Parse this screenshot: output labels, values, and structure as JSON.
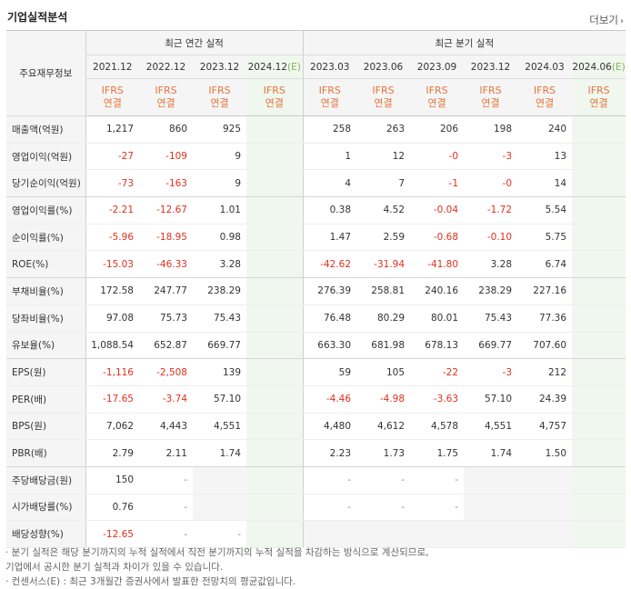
{
  "header": {
    "title": "기업실적분석",
    "more_label": "더보기",
    "more_arrow": "›"
  },
  "table": {
    "row_header": "주요재무정보",
    "group_annual": "최근 연간 실적",
    "group_quarter": "최근 분기 실적",
    "periods": [
      {
        "date": "2021.12",
        "estimate": ""
      },
      {
        "date": "2022.12",
        "estimate": ""
      },
      {
        "date": "2023.12",
        "estimate": ""
      },
      {
        "date": "2024.12",
        "estimate": "(E)"
      },
      {
        "date": "2023.03",
        "estimate": ""
      },
      {
        "date": "2023.06",
        "estimate": ""
      },
      {
        "date": "2023.09",
        "estimate": ""
      },
      {
        "date": "2023.12",
        "estimate": ""
      },
      {
        "date": "2024.03",
        "estimate": ""
      },
      {
        "date": "2024.06",
        "estimate": "(E)"
      }
    ],
    "basis_line1": "IFRS",
    "basis_line2": "연결",
    "rows": [
      {
        "label": "매출액(억원)",
        "values": [
          "1,217",
          "860",
          "925",
          "",
          "258",
          "263",
          "206",
          "198",
          "240",
          ""
        ]
      },
      {
        "label": "영업이익(억원)",
        "values": [
          "-27",
          "-109",
          "9",
          "",
          "1",
          "12",
          "-0",
          "-3",
          "13",
          ""
        ]
      },
      {
        "label": "당기순이익(억원)",
        "values": [
          "-73",
          "-163",
          "9",
          "",
          "4",
          "7",
          "-1",
          "-0",
          "14",
          ""
        ]
      },
      {
        "label": "영업이익률(%)",
        "values": [
          "-2.21",
          "-12.67",
          "1.01",
          "",
          "0.38",
          "4.52",
          "-0.04",
          "-1.72",
          "5.54",
          ""
        ]
      },
      {
        "label": "순이익률(%)",
        "values": [
          "-5.96",
          "-18.95",
          "0.98",
          "",
          "1.47",
          "2.59",
          "-0.68",
          "-0.10",
          "5.75",
          ""
        ]
      },
      {
        "label": "ROE(%)",
        "values": [
          "-15.03",
          "-46.33",
          "3.28",
          "",
          "-42.62",
          "-31.94",
          "-41.80",
          "3.28",
          "6.74",
          ""
        ]
      },
      {
        "label": "부채비율(%)",
        "values": [
          "172.58",
          "247.77",
          "238.29",
          "",
          "276.39",
          "258.81",
          "240.16",
          "238.29",
          "227.16",
          ""
        ]
      },
      {
        "label": "당좌비율(%)",
        "values": [
          "97.08",
          "75.73",
          "75.43",
          "",
          "76.48",
          "80.29",
          "80.01",
          "75.43",
          "77.36",
          ""
        ]
      },
      {
        "label": "유보율(%)",
        "values": [
          "1,088.54",
          "652.87",
          "669.77",
          "",
          "663.30",
          "681.98",
          "678.13",
          "669.77",
          "707.60",
          ""
        ]
      },
      {
        "label": "EPS(원)",
        "values": [
          "-1,116",
          "-2,508",
          "139",
          "",
          "59",
          "105",
          "-22",
          "-3",
          "212",
          ""
        ]
      },
      {
        "label": "PER(배)",
        "values": [
          "-17.65",
          "-3.74",
          "57.10",
          "",
          "-4.46",
          "-4.98",
          "-3.63",
          "57.10",
          "24.39",
          ""
        ]
      },
      {
        "label": "BPS(원)",
        "values": [
          "7,062",
          "4,443",
          "4,551",
          "",
          "4,480",
          "4,612",
          "4,578",
          "4,551",
          "4,757",
          ""
        ]
      },
      {
        "label": "PBR(배)",
        "values": [
          "2.79",
          "2.11",
          "1.74",
          "",
          "2.23",
          "1.73",
          "1.75",
          "1.74",
          "1.50",
          ""
        ]
      },
      {
        "label": "주당배당금(원)",
        "values": [
          "150",
          "-",
          "",
          "",
          "-",
          "-",
          "-",
          "",
          "",
          ""
        ]
      },
      {
        "label": "시가배당률(%)",
        "values": [
          "0.76",
          "-",
          "",
          "",
          "-",
          "-",
          "-",
          "",
          "",
          ""
        ]
      },
      {
        "label": "배당성향(%)",
        "values": [
          "-12.65",
          "-",
          "-",
          "",
          "",
          "",
          "",
          "",
          "",
          ""
        ]
      }
    ]
  },
  "notes": [
    "· 분기 실적은 해당 분기까지의 누적 실적에서 직전 분기까지의 누적 실적을 차감하는 방식으로 계산되므로,",
    "   기업에서 공시한 분기 실적과 차이가 있을 수 있습니다.",
    "· 컨센서스(E) : 최근 3개월간 증권사에서 발표한 전망치의 평균값입니다."
  ]
}
